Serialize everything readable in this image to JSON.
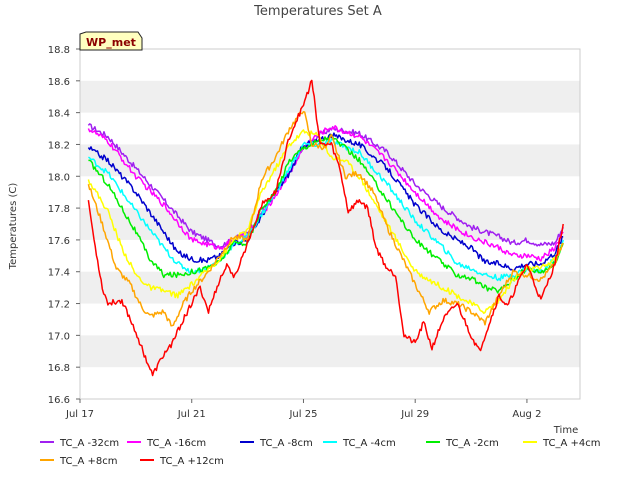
{
  "chart_data": {
    "type": "line",
    "title": "Temperatures Set A",
    "xlabel": "Time",
    "ylabel": "Temperatures (C)",
    "badge": "WP_met",
    "x_ticks": [
      {
        "day": 0,
        "label": "Jul 17"
      },
      {
        "day": 4,
        "label": "Jul 21"
      },
      {
        "day": 8,
        "label": "Jul 25"
      },
      {
        "day": 12,
        "label": "Jul 29"
      },
      {
        "day": 16,
        "label": "Aug 2"
      }
    ],
    "y_ticks": [
      16.6,
      16.8,
      17.0,
      17.2,
      17.4,
      17.6,
      17.8,
      18.0,
      18.2,
      18.4,
      18.6,
      18.8
    ],
    "xlim_days": [
      0,
      17.9
    ],
    "ylim": [
      16.6,
      18.8
    ],
    "grid": "horizontal alternating bands",
    "legend_position": "bottom",
    "series": [
      {
        "name": "TC_A -32cm",
        "color": "#a020f0",
        "points": [
          [
            0.3,
            18.32
          ],
          [
            1,
            18.25
          ],
          [
            2,
            18.05
          ],
          [
            3,
            17.85
          ],
          [
            4,
            17.65
          ],
          [
            5,
            17.56
          ],
          [
            5.5,
            17.6
          ],
          [
            6,
            17.65
          ],
          [
            7,
            17.9
          ],
          [
            7.5,
            18.02
          ],
          [
            8,
            18.18
          ],
          [
            8.5,
            18.25
          ],
          [
            9,
            18.3
          ],
          [
            10,
            18.27
          ],
          [
            11,
            18.15
          ],
          [
            12,
            17.95
          ],
          [
            13,
            17.8
          ],
          [
            14,
            17.68
          ],
          [
            15,
            17.62
          ],
          [
            15.5,
            17.58
          ],
          [
            16,
            17.6
          ],
          [
            16.5,
            17.57
          ],
          [
            17,
            17.58
          ],
          [
            17.3,
            17.68
          ]
        ]
      },
      {
        "name": "TC_A -16cm",
        "color": "#ff00ff",
        "points": [
          [
            0.3,
            18.3
          ],
          [
            1,
            18.22
          ],
          [
            2,
            18.0
          ],
          [
            3,
            17.82
          ],
          [
            4,
            17.6
          ],
          [
            5,
            17.55
          ],
          [
            5.5,
            17.6
          ],
          [
            6,
            17.63
          ],
          [
            7,
            17.88
          ],
          [
            7.5,
            18.02
          ],
          [
            8,
            18.18
          ],
          [
            8.5,
            18.26
          ],
          [
            9,
            18.31
          ],
          [
            10,
            18.25
          ],
          [
            11,
            18.1
          ],
          [
            12,
            17.9
          ],
          [
            13,
            17.72
          ],
          [
            14,
            17.62
          ],
          [
            15,
            17.55
          ],
          [
            15.5,
            17.5
          ],
          [
            16,
            17.5
          ],
          [
            16.5,
            17.48
          ],
          [
            17,
            17.55
          ],
          [
            17.3,
            17.65
          ]
        ]
      },
      {
        "name": "TC_A -8cm",
        "color": "#0000cd",
        "points": [
          [
            0.3,
            18.18
          ],
          [
            1,
            18.1
          ],
          [
            2,
            17.9
          ],
          [
            3,
            17.65
          ],
          [
            3.5,
            17.52
          ],
          [
            4,
            17.48
          ],
          [
            4.5,
            17.47
          ],
          [
            5,
            17.5
          ],
          [
            5.5,
            17.58
          ],
          [
            6,
            17.6
          ],
          [
            7,
            17.9
          ],
          [
            7.5,
            18.02
          ],
          [
            8,
            18.2
          ],
          [
            8.5,
            18.22
          ],
          [
            9,
            18.26
          ],
          [
            10,
            18.2
          ],
          [
            11,
            18.05
          ],
          [
            12,
            17.82
          ],
          [
            13,
            17.65
          ],
          [
            14,
            17.55
          ],
          [
            14.5,
            17.46
          ],
          [
            15,
            17.45
          ],
          [
            15.5,
            17.42
          ],
          [
            16,
            17.45
          ],
          [
            16.5,
            17.45
          ],
          [
            17,
            17.52
          ],
          [
            17.3,
            17.62
          ]
        ]
      },
      {
        "name": "TC_A -4cm",
        "color": "#00ffff",
        "points": [
          [
            0.3,
            18.12
          ],
          [
            1,
            18.02
          ],
          [
            2,
            17.78
          ],
          [
            3,
            17.55
          ],
          [
            3.5,
            17.45
          ],
          [
            4,
            17.4
          ],
          [
            4.5,
            17.42
          ],
          [
            5,
            17.47
          ],
          [
            5.5,
            17.57
          ],
          [
            6,
            17.62
          ],
          [
            7,
            17.9
          ],
          [
            7.5,
            18.05
          ],
          [
            8,
            18.2
          ],
          [
            8.5,
            18.2
          ],
          [
            9,
            18.22
          ],
          [
            10,
            18.15
          ],
          [
            11,
            17.95
          ],
          [
            12,
            17.72
          ],
          [
            13,
            17.55
          ],
          [
            13.5,
            17.45
          ],
          [
            14,
            17.42
          ],
          [
            14.5,
            17.38
          ],
          [
            15,
            17.36
          ],
          [
            15.5,
            17.38
          ],
          [
            16,
            17.42
          ],
          [
            16.5,
            17.4
          ],
          [
            17,
            17.48
          ],
          [
            17.3,
            17.6
          ]
        ]
      },
      {
        "name": "TC_A -2cm",
        "color": "#00ee00",
        "points": [
          [
            0.3,
            18.1
          ],
          [
            1,
            17.95
          ],
          [
            2,
            17.65
          ],
          [
            2.5,
            17.48
          ],
          [
            3,
            17.38
          ],
          [
            3.5,
            17.38
          ],
          [
            4,
            17.4
          ],
          [
            4.5,
            17.42
          ],
          [
            5,
            17.46
          ],
          [
            5.5,
            17.58
          ],
          [
            6,
            17.58
          ],
          [
            6.5,
            17.8
          ],
          [
            7,
            17.9
          ],
          [
            7.5,
            18.1
          ],
          [
            8,
            18.18
          ],
          [
            8.5,
            18.22
          ],
          [
            9,
            18.25
          ],
          [
            10,
            18.1
          ],
          [
            11,
            17.85
          ],
          [
            12,
            17.6
          ],
          [
            13,
            17.45
          ],
          [
            13.5,
            17.38
          ],
          [
            14,
            17.36
          ],
          [
            14.5,
            17.3
          ],
          [
            15,
            17.28
          ],
          [
            15.5,
            17.35
          ],
          [
            16,
            17.42
          ],
          [
            16.5,
            17.4
          ],
          [
            17,
            17.45
          ],
          [
            17.3,
            17.58
          ]
        ]
      },
      {
        "name": "TC_A +4cm",
        "color": "#ffff00",
        "points": [
          [
            0.3,
            17.98
          ],
          [
            1,
            17.78
          ],
          [
            1.5,
            17.55
          ],
          [
            2,
            17.38
          ],
          [
            2.5,
            17.3
          ],
          [
            3,
            17.28
          ],
          [
            3.5,
            17.25
          ],
          [
            4,
            17.32
          ],
          [
            4.5,
            17.4
          ],
          [
            5,
            17.48
          ],
          [
            5.5,
            17.6
          ],
          [
            6,
            17.66
          ],
          [
            6.5,
            17.9
          ],
          [
            7,
            18.05
          ],
          [
            7.5,
            18.2
          ],
          [
            8,
            18.28
          ],
          [
            8.5,
            18.26
          ],
          [
            9,
            18.12
          ],
          [
            9.5,
            18.1
          ],
          [
            10,
            18.0
          ],
          [
            11,
            17.7
          ],
          [
            12,
            17.4
          ],
          [
            12.5,
            17.35
          ],
          [
            13,
            17.3
          ],
          [
            13.5,
            17.25
          ],
          [
            14,
            17.2
          ],
          [
            14.5,
            17.15
          ],
          [
            15,
            17.22
          ],
          [
            15.5,
            17.35
          ],
          [
            16,
            17.42
          ],
          [
            16.5,
            17.42
          ],
          [
            17,
            17.48
          ],
          [
            17.3,
            17.58
          ]
        ]
      },
      {
        "name": "TC_A +8cm",
        "color": "#ffa500",
        "points": [
          [
            0.3,
            17.95
          ],
          [
            0.8,
            17.7
          ],
          [
            1.3,
            17.42
          ],
          [
            1.8,
            17.32
          ],
          [
            2.2,
            17.18
          ],
          [
            2.5,
            17.12
          ],
          [
            3,
            17.15
          ],
          [
            3.3,
            17.05
          ],
          [
            3.7,
            17.2
          ],
          [
            4,
            17.28
          ],
          [
            4.5,
            17.38
          ],
          [
            5,
            17.5
          ],
          [
            5.5,
            17.62
          ],
          [
            6,
            17.6
          ],
          [
            6.5,
            17.98
          ],
          [
            7,
            18.12
          ],
          [
            7.5,
            18.3
          ],
          [
            8,
            18.42
          ],
          [
            8.3,
            18.2
          ],
          [
            8.8,
            18.18
          ],
          [
            9,
            18.25
          ],
          [
            9.5,
            18.0
          ],
          [
            10,
            18.02
          ],
          [
            10.5,
            17.9
          ],
          [
            11,
            17.68
          ],
          [
            11.5,
            17.5
          ],
          [
            12,
            17.32
          ],
          [
            12.5,
            17.15
          ],
          [
            13,
            17.22
          ],
          [
            13.5,
            17.2
          ],
          [
            14,
            17.15
          ],
          [
            14.5,
            17.08
          ],
          [
            15,
            17.25
          ],
          [
            15.5,
            17.4
          ],
          [
            16,
            17.38
          ],
          [
            16.5,
            17.35
          ],
          [
            17,
            17.45
          ],
          [
            17.3,
            17.58
          ]
        ]
      },
      {
        "name": "TC_A +12cm",
        "color": "#ff0000",
        "points": [
          [
            0.3,
            17.85
          ],
          [
            0.5,
            17.6
          ],
          [
            0.8,
            17.3
          ],
          [
            1,
            17.2
          ],
          [
            1.5,
            17.22
          ],
          [
            1.8,
            17.1
          ],
          [
            2,
            17.02
          ],
          [
            2.3,
            16.88
          ],
          [
            2.6,
            16.75
          ],
          [
            3,
            16.88
          ],
          [
            3.3,
            16.95
          ],
          [
            3.7,
            17.1
          ],
          [
            4,
            17.2
          ],
          [
            4.3,
            17.3
          ],
          [
            4.6,
            17.15
          ],
          [
            5,
            17.35
          ],
          [
            5.3,
            17.45
          ],
          [
            5.5,
            17.35
          ],
          [
            6,
            17.58
          ],
          [
            6.5,
            17.82
          ],
          [
            7,
            17.9
          ],
          [
            7.5,
            18.25
          ],
          [
            8,
            18.45
          ],
          [
            8.3,
            18.6
          ],
          [
            8.6,
            18.2
          ],
          [
            9,
            18.2
          ],
          [
            9.3,
            18.05
          ],
          [
            9.6,
            17.78
          ],
          [
            10,
            17.85
          ],
          [
            10.3,
            17.8
          ],
          [
            10.6,
            17.55
          ],
          [
            11,
            17.42
          ],
          [
            11.3,
            17.38
          ],
          [
            11.6,
            17.0
          ],
          [
            12,
            16.95
          ],
          [
            12.3,
            17.08
          ],
          [
            12.6,
            16.92
          ],
          [
            13,
            17.1
          ],
          [
            13.5,
            17.2
          ],
          [
            14,
            17.0
          ],
          [
            14.3,
            16.9
          ],
          [
            14.6,
            17.05
          ],
          [
            15,
            17.25
          ],
          [
            15.3,
            17.18
          ],
          [
            15.6,
            17.3
          ],
          [
            16,
            17.45
          ],
          [
            16.5,
            17.22
          ],
          [
            17,
            17.45
          ],
          [
            17.3,
            17.7
          ]
        ]
      }
    ]
  }
}
